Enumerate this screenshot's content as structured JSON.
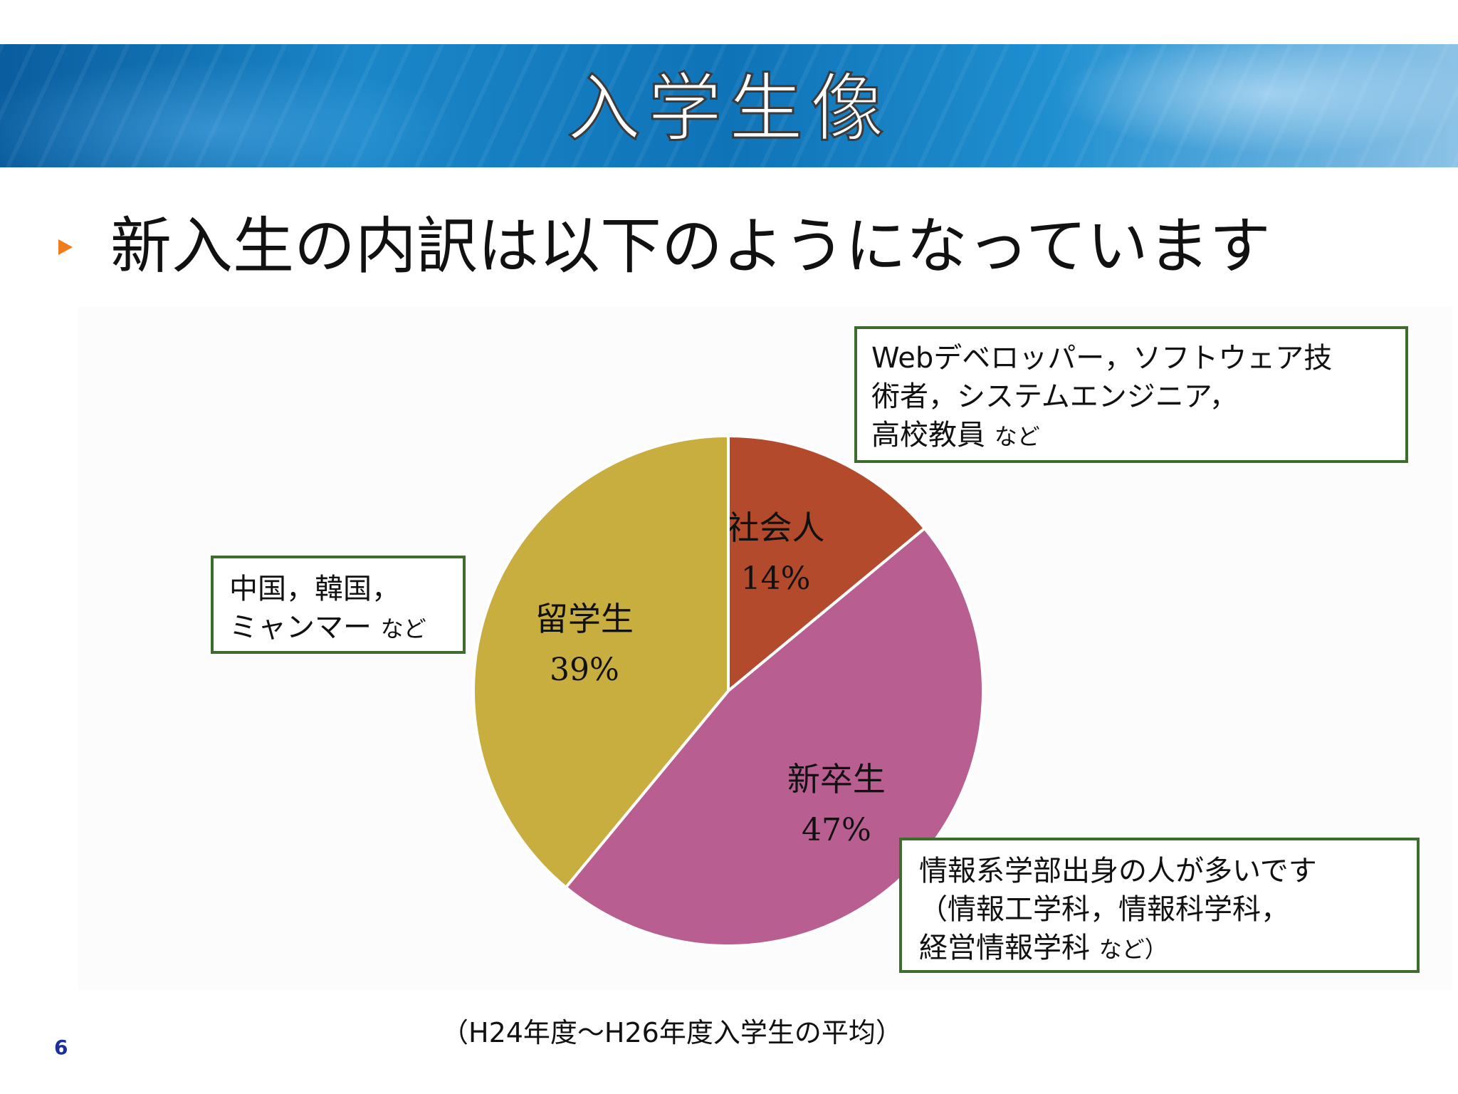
{
  "slide": {
    "title": "入学生像",
    "heading": "新入生の内訳は以下のようになっています",
    "footnote": "（H24年度～H26年度入学生の平均）",
    "page_number": "6"
  },
  "callouts": {
    "shakaijin": {
      "lines": [
        "Webデベロッパー，ソフトウェア技",
        "術者，システムエンジニア，"
      ],
      "last": "高校教員",
      "suffix": "など"
    },
    "ryugakusei": {
      "lines": [
        "中国，韓国，"
      ],
      "last": "ミャンマー",
      "suffix": "など"
    },
    "shinsotsu": {
      "lines": [
        "情報系学部出身の人が多いです",
        "（情報工学科，情報科学科，"
      ],
      "last": "経営情報学科",
      "suffix": "など）"
    }
  },
  "colors": {
    "shakaijin": "#b44a2c",
    "shinsotsu": "#b85e90",
    "ryugakusei": "#c8ad3f",
    "callout_border": "#3e6b2e",
    "bullet": "#f07c1b"
  },
  "chart_data": {
    "type": "pie",
    "title": "",
    "categories": [
      "社会人",
      "新卒生",
      "留学生"
    ],
    "values": [
      14,
      47,
      39
    ],
    "value_labels": [
      "14%",
      "47%",
      "39%"
    ],
    "legend": "none"
  }
}
